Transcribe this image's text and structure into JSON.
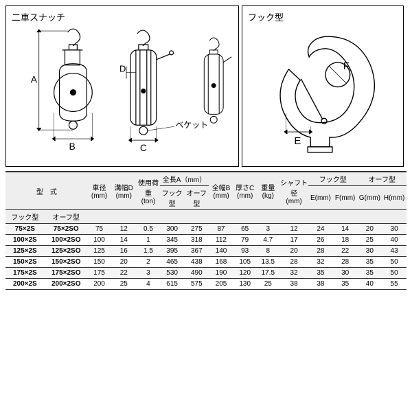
{
  "diagrams": {
    "left_title": "二車スナッチ",
    "right_title": "フック型",
    "label_A": "A",
    "label_B": "B",
    "label_C": "C",
    "label_D": "D",
    "label_beket": "ベケット",
    "label_E": "E",
    "label_F": "F"
  },
  "table": {
    "headers": {
      "model": "型　式",
      "hook_model": "フック型",
      "oof_model": "オーフ型",
      "wheel_dia": "車径",
      "groove_w": "溝幅D",
      "mm": "(mm)",
      "load": "使用荷重",
      "ton": "(ton)",
      "length_a": "全長A（mm）",
      "width_b": "全幅B",
      "thick_c": "厚さC",
      "weight": "重量",
      "kg": "(kg)",
      "shaft": "シャフト径",
      "hook_type": "フック型",
      "oof_type": "オーフ型",
      "E": "E(mm)",
      "F": "F(mm)",
      "G": "G(mm)",
      "H": "H(mm)"
    },
    "rows": [
      {
        "hm": "75×2S",
        "om": "75×2SO",
        "wd": "75",
        "gw": "12",
        "ld": "0.5",
        "laH": "300",
        "laO": "275",
        "wb": "87",
        "tc": "65",
        "wt": "3",
        "sh": "12",
        "e": "24",
        "f": "14",
        "g": "20",
        "h": "30"
      },
      {
        "hm": "100×2S",
        "om": "100×2SO",
        "wd": "100",
        "gw": "14",
        "ld": "1",
        "laH": "345",
        "laO": "318",
        "wb": "112",
        "tc": "79",
        "wt": "4.7",
        "sh": "17",
        "e": "26",
        "f": "18",
        "g": "25",
        "h": "40"
      },
      {
        "hm": "125×2S",
        "om": "125×2SO",
        "wd": "125",
        "gw": "16",
        "ld": "1.5",
        "laH": "395",
        "laO": "367",
        "wb": "140",
        "tc": "93",
        "wt": "8",
        "sh": "20",
        "e": "28",
        "f": "22",
        "g": "30",
        "h": "43"
      },
      {
        "hm": "150×2S",
        "om": "150×2SO",
        "wd": "150",
        "gw": "20",
        "ld": "2",
        "laH": "465",
        "laO": "438",
        "wb": "168",
        "tc": "105",
        "wt": "13.5",
        "sh": "28",
        "e": "32",
        "f": "28",
        "g": "35",
        "h": "50"
      },
      {
        "hm": "175×2S",
        "om": "175×2SO",
        "wd": "175",
        "gw": "22",
        "ld": "3",
        "laH": "530",
        "laO": "490",
        "wb": "190",
        "tc": "120",
        "wt": "17.5",
        "sh": "32",
        "e": "35",
        "f": "30",
        "g": "35",
        "h": "50"
      },
      {
        "hm": "200×2S",
        "om": "200×2SO",
        "wd": "200",
        "gw": "25",
        "ld": "4",
        "laH": "615",
        "laO": "575",
        "wb": "205",
        "tc": "130",
        "wt": "25",
        "sh": "38",
        "e": "38",
        "f": "35",
        "g": "40",
        "h": "55"
      }
    ]
  },
  "colors": {
    "stroke": "#000000",
    "bg": "#ffffff",
    "shade": "#f5f5f5"
  }
}
